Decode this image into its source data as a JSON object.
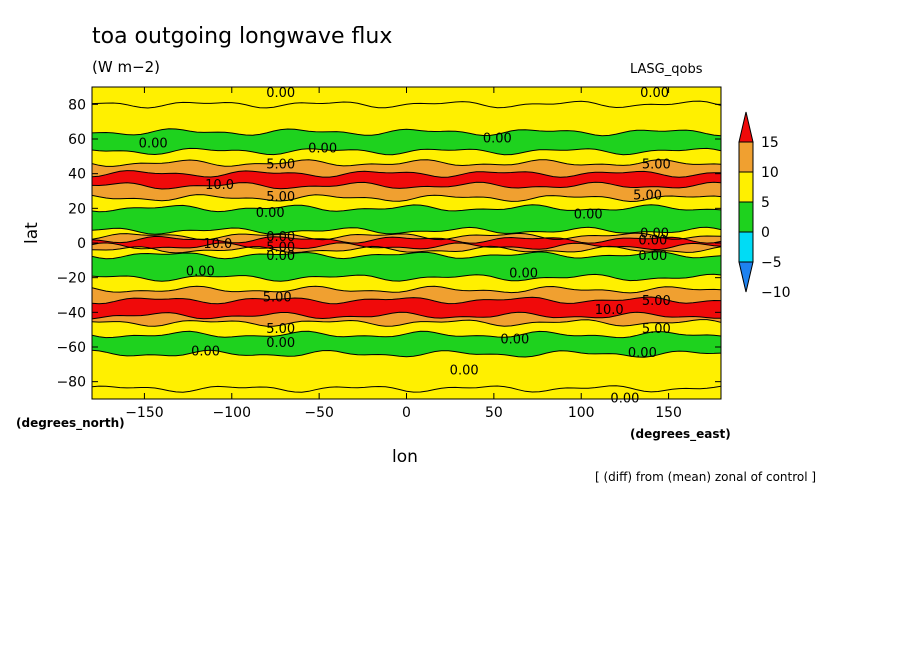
{
  "header": {
    "title": "toa outgoing longwave flux",
    "units": "(W m−2)",
    "model": "LASG_qobs",
    "note": "[ (diff) from (mean) zonal of control ]"
  },
  "colors": {
    "red": "#f00a0a",
    "orange": "#f0a030",
    "yellow": "#fff000",
    "green": "#1ed21e",
    "cyan": "#00dcf5",
    "blue": "#1e82f0"
  },
  "chart_data": {
    "type": "heatmap",
    "title": "toa outgoing longwave flux",
    "units": "(W m−2)",
    "xlabel": "lon",
    "ylabel": "lat",
    "x_unit": "(degrees_east)",
    "y_unit": "(degrees_north)",
    "xlim": [
      -180,
      180
    ],
    "ylim": [
      -90,
      90
    ],
    "xticks": [
      -150,
      -100,
      -50,
      0,
      50,
      100,
      150
    ],
    "yticks": [
      -80,
      -60,
      -40,
      -20,
      0,
      20,
      40,
      60,
      80
    ],
    "xtick_labels": [
      "−150",
      "−100",
      "−50",
      "0",
      "50",
      "100",
      "150"
    ],
    "ytick_labels": [
      "−80",
      "−60",
      "−40",
      "−20",
      "0",
      "20",
      "40",
      "60",
      "80"
    ],
    "colorbar": {
      "levels": [
        -10,
        -5,
        0,
        5,
        10,
        15
      ],
      "labels": [
        "−10",
        "−5",
        "0",
        "5",
        "10",
        "15"
      ],
      "colors": [
        "#1e82f0",
        "#00dcf5",
        "#1ed21e",
        "#fff000",
        "#f0a030",
        "#f00a0a"
      ]
    },
    "bands": [
      {
        "lat_min": 80,
        "lat_max": 90,
        "value": 2
      },
      {
        "lat_min": 64,
        "lat_max": 80,
        "value": 2
      },
      {
        "lat_min": 53,
        "lat_max": 64,
        "value": -3
      },
      {
        "lat_min": 46,
        "lat_max": 53,
        "value": 2
      },
      {
        "lat_min": 40,
        "lat_max": 46,
        "value": 7
      },
      {
        "lat_min": 33,
        "lat_max": 40,
        "value": 11
      },
      {
        "lat_min": 26,
        "lat_max": 33,
        "value": 7
      },
      {
        "lat_min": 20,
        "lat_max": 26,
        "value": 2
      },
      {
        "lat_min": 7,
        "lat_max": 20,
        "value": -3
      },
      {
        "lat_min": 4,
        "lat_max": 7,
        "value": 2
      },
      {
        "lat_min": 2,
        "lat_max": 4,
        "value": 7
      },
      {
        "lat_min": -2,
        "lat_max": 2,
        "value": 11
      },
      {
        "lat_min": -4,
        "lat_max": -2,
        "value": 7
      },
      {
        "lat_min": -7,
        "lat_max": -4,
        "value": 2
      },
      {
        "lat_min": -20,
        "lat_max": -7,
        "value": -3
      },
      {
        "lat_min": -27,
        "lat_max": -20,
        "value": 2
      },
      {
        "lat_min": -33,
        "lat_max": -27,
        "value": 7
      },
      {
        "lat_min": -42,
        "lat_max": -33,
        "value": 11
      },
      {
        "lat_min": -46,
        "lat_max": -42,
        "value": 7
      },
      {
        "lat_min": -53,
        "lat_max": -46,
        "value": 2
      },
      {
        "lat_min": -64,
        "lat_max": -53,
        "value": -3
      },
      {
        "lat_min": -84,
        "lat_max": -64,
        "value": 2
      },
      {
        "lat_min": -90,
        "lat_max": -84,
        "value": 2
      }
    ],
    "contour_labels": [
      {
        "text": "0.00",
        "lon": -72,
        "lat": 87
      },
      {
        "text": "0.00",
        "lon": 142,
        "lat": 87
      },
      {
        "text": "0.00",
        "lon": -145,
        "lat": 58
      },
      {
        "text": "0.00",
        "lon": -48,
        "lat": 55
      },
      {
        "text": "0.00",
        "lon": 52,
        "lat": 61
      },
      {
        "text": "5.00",
        "lon": -72,
        "lat": 46
      },
      {
        "text": "5.00",
        "lon": 143,
        "lat": 46
      },
      {
        "text": "10.0",
        "lon": -107,
        "lat": 34
      },
      {
        "text": "5.00",
        "lon": -72,
        "lat": 27
      },
      {
        "text": "5.00",
        "lon": 138,
        "lat": 28
      },
      {
        "text": "0.00",
        "lon": -78,
        "lat": 18
      },
      {
        "text": "0.00",
        "lon": 104,
        "lat": 17
      },
      {
        "text": "0.00",
        "lon": 142,
        "lat": 6
      },
      {
        "text": "0.00",
        "lon": -72,
        "lat": 4
      },
      {
        "text": "0.00",
        "lon": 141,
        "lat": 2
      },
      {
        "text": "10.0",
        "lon": -108,
        "lat": 0
      },
      {
        "text": "5.00",
        "lon": -72,
        "lat": -2
      },
      {
        "text": "0.00",
        "lon": -72,
        "lat": -7
      },
      {
        "text": "0.00",
        "lon": 141,
        "lat": -7
      },
      {
        "text": "0.00",
        "lon": -118,
        "lat": -16
      },
      {
        "text": "0.00",
        "lon": 67,
        "lat": -17
      },
      {
        "text": "5.00",
        "lon": -74,
        "lat": -31
      },
      {
        "text": "5.00",
        "lon": 143,
        "lat": -33
      },
      {
        "text": "10.0",
        "lon": 116,
        "lat": -38
      },
      {
        "text": "5.00",
        "lon": -72,
        "lat": -49
      },
      {
        "text": "5.00",
        "lon": 143,
        "lat": -49
      },
      {
        "text": "0.00",
        "lon": -72,
        "lat": -57
      },
      {
        "text": "0.00",
        "lon": 62,
        "lat": -55
      },
      {
        "text": "0.00",
        "lon": -115,
        "lat": -62
      },
      {
        "text": "0.00",
        "lon": 135,
        "lat": -63
      },
      {
        "text": "0.00",
        "lon": 33,
        "lat": -73
      },
      {
        "text": "0.00",
        "lon": 125,
        "lat": -89
      }
    ]
  }
}
